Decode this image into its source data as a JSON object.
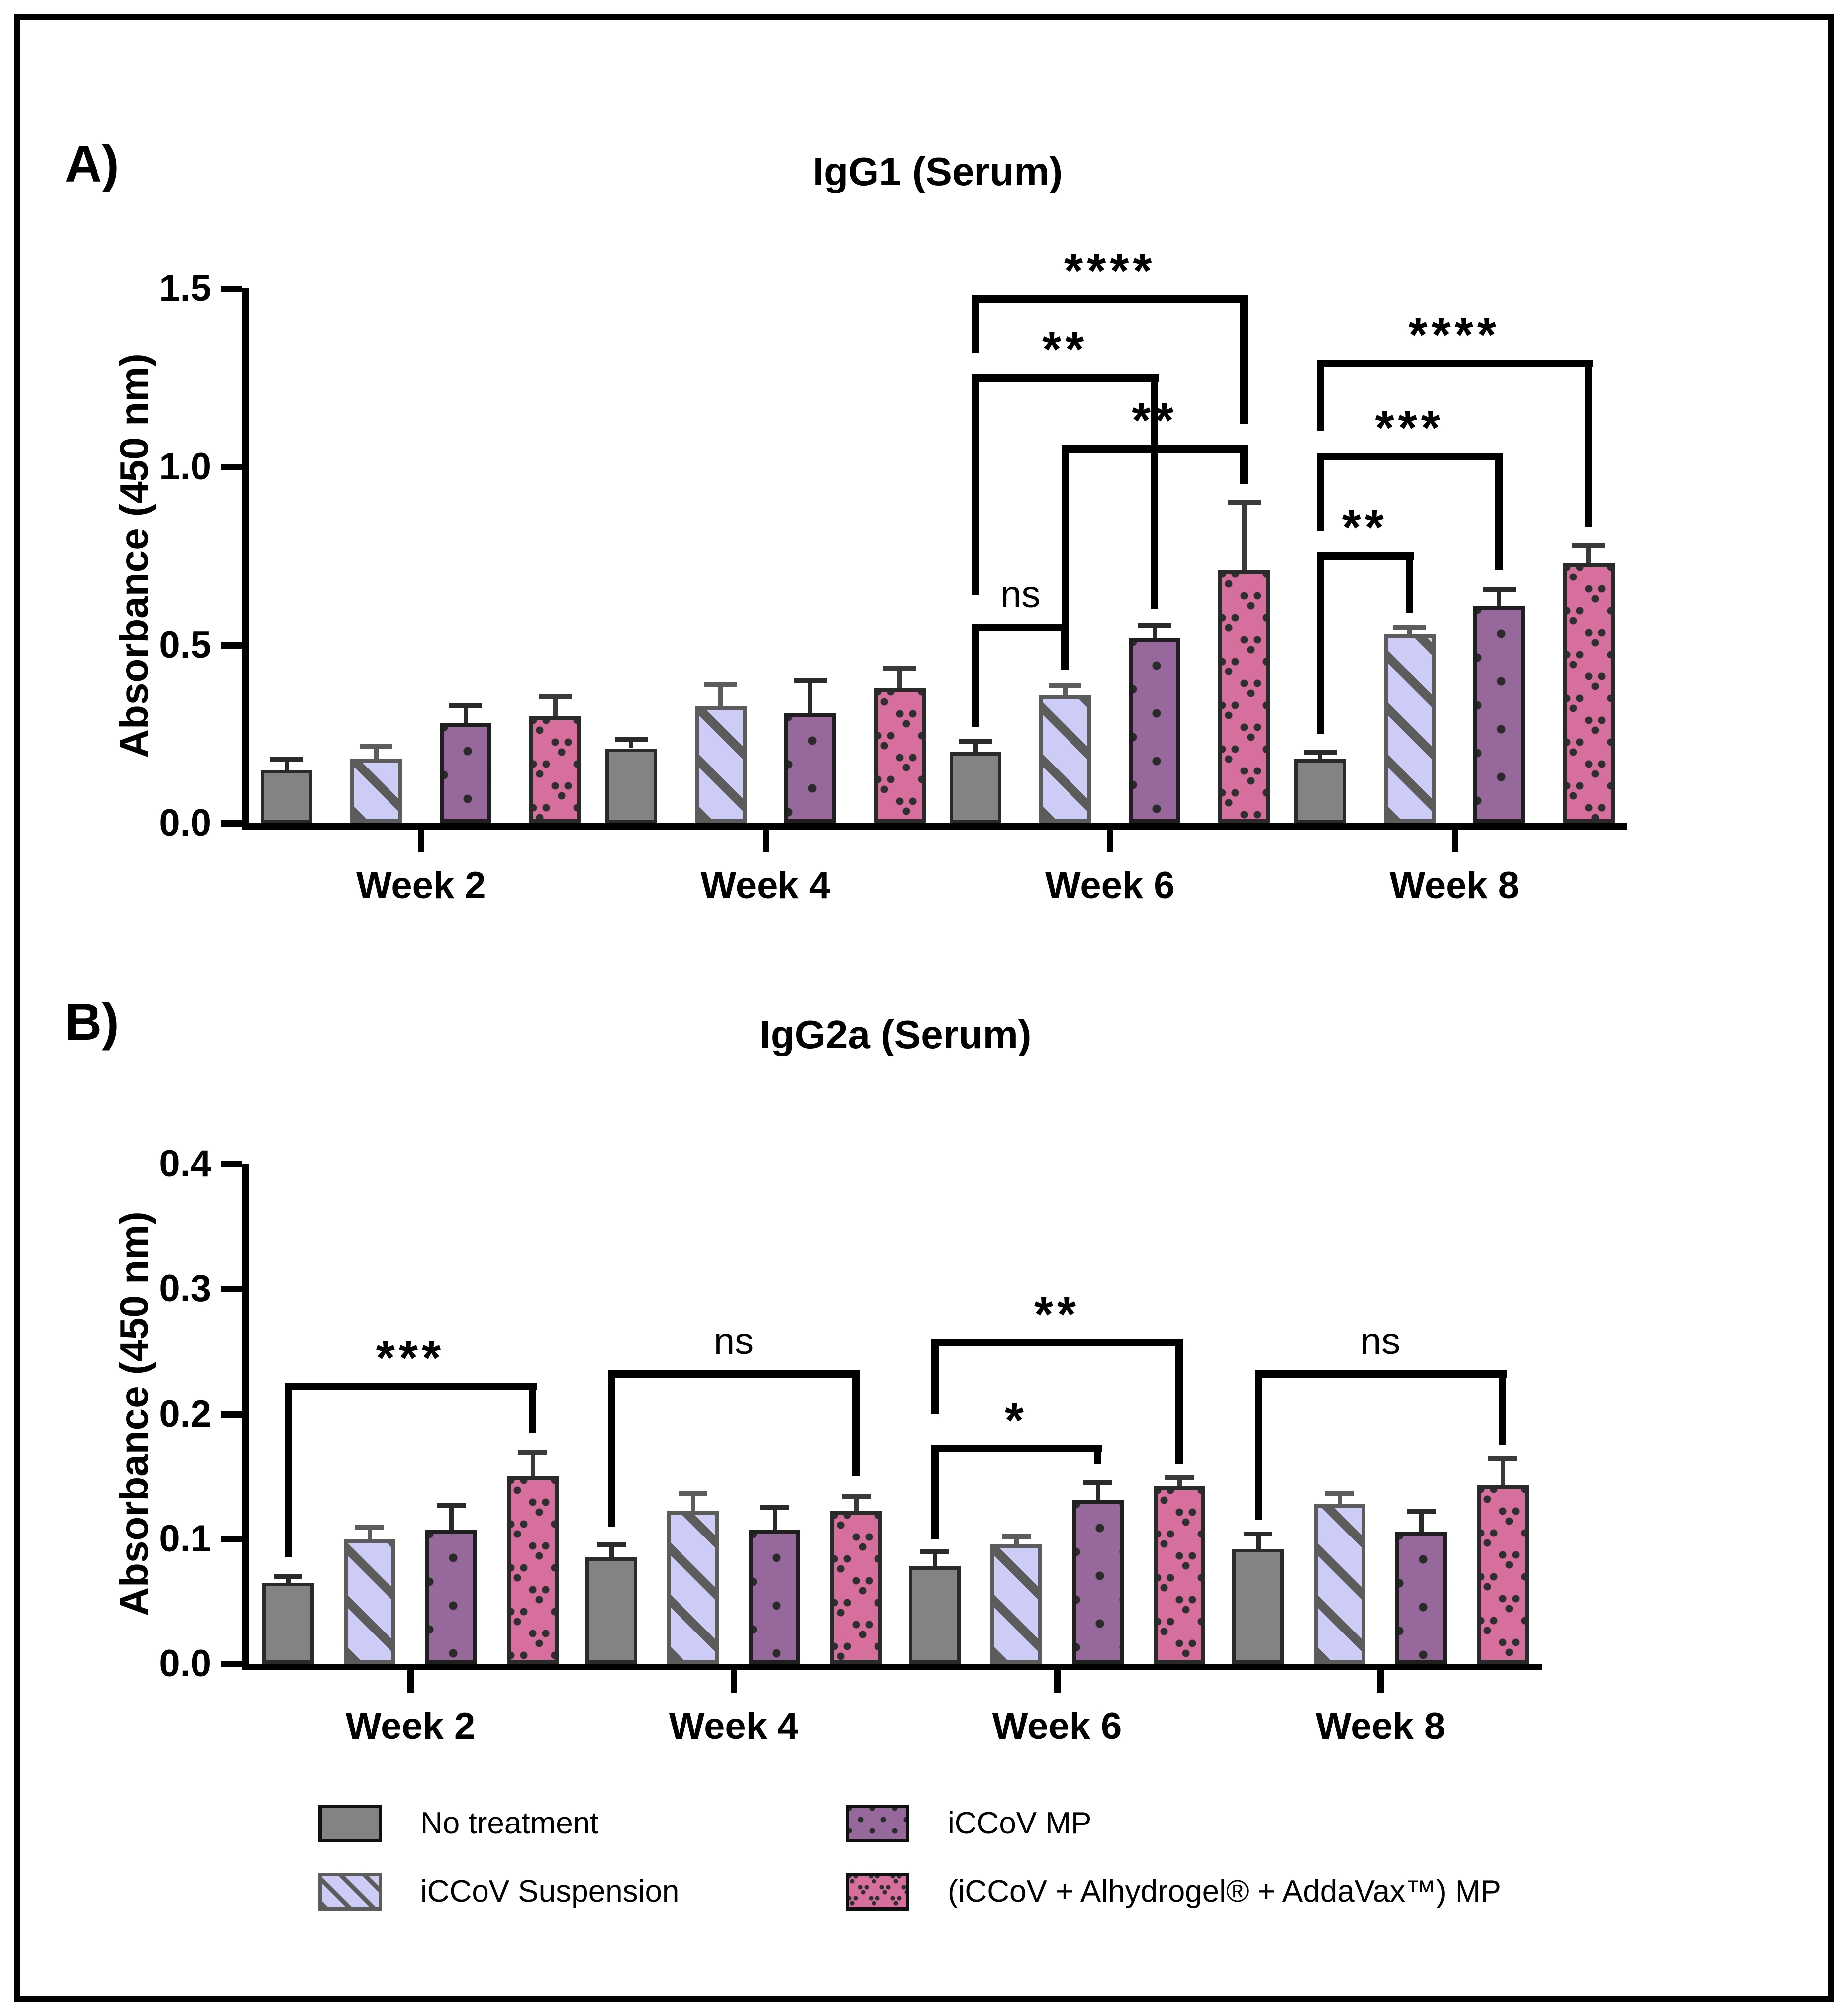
{
  "figure": {
    "panels": [
      {
        "letter": "A)",
        "title": "IgG1 (Serum)",
        "ylabel": "Absorbance (450 nm)"
      },
      {
        "letter": "B)",
        "title": "IgG2a (Serum)",
        "ylabel": "Absorbance (450 nm)"
      }
    ]
  },
  "legend": {
    "items": [
      {
        "label": "No treatment",
        "swatch": "gray-solid"
      },
      {
        "label": "iCCoV Suspension",
        "swatch": "lavender-diagonal-stripes"
      },
      {
        "label": "iCCoV MP",
        "swatch": "purple-dots"
      },
      {
        "label": "(iCCoV + Alhydrogel® + AddaVax™) MP",
        "swatch": "pink-v-pattern"
      }
    ]
  },
  "colors": {
    "no_treatment": "#838383",
    "iccov_suspension": "#cdccf6",
    "iccov_suspension_stripe": "#5c5c5c",
    "iccov_mp": "#97689c",
    "iccov_alhydrogel_addavax_mp": "#d76f9e",
    "pattern_ink": "#2a2a2a",
    "axis": "#000000"
  },
  "chart_data": [
    {
      "type": "bar",
      "title": "IgG1 (Serum)",
      "xlabel": "",
      "ylabel": "Absorbance (450 nm)",
      "ylim": [
        0,
        1.5
      ],
      "yticks": [
        0,
        0.5,
        1.0,
        1.5
      ],
      "ytick_labels": [
        "0.0",
        "0.5",
        "1.0",
        "1.5"
      ],
      "categories": [
        "Week 2",
        "Week 4",
        "Week 6",
        "Week 8"
      ],
      "grid": false,
      "error_bars": "upper SD",
      "series": [
        {
          "name": "No treatment",
          "values": [
            0.15,
            0.21,
            0.2,
            0.18
          ],
          "errors": [
            0.03,
            0.025,
            0.03,
            0.02
          ]
        },
        {
          "name": "iCCoV Suspension",
          "values": [
            0.18,
            0.33,
            0.36,
            0.53
          ],
          "errors": [
            0.035,
            0.06,
            0.025,
            0.02
          ]
        },
        {
          "name": "iCCoV MP",
          "values": [
            0.28,
            0.31,
            0.52,
            0.61
          ],
          "errors": [
            0.05,
            0.09,
            0.035,
            0.045
          ]
        },
        {
          "name": "(iCCoV + Alhydrogel® + AddaVax™) MP",
          "values": [
            0.3,
            0.38,
            0.71,
            0.73
          ],
          "errors": [
            0.055,
            0.055,
            0.19,
            0.05
          ]
        }
      ],
      "significance": [
        {
          "group": 2,
          "from": 0,
          "to": 1,
          "label": "ns",
          "y": 0.56,
          "left_down_to": 0.27,
          "right_down_to": 0.43
        },
        {
          "group": 2,
          "from": 0,
          "to": 2,
          "label": "**",
          "y": 1.26,
          "left_down_to": 0.64,
          "right_down_to": 0.6
        },
        {
          "group": 2,
          "from": 1,
          "to": 3,
          "label": "**",
          "y": 1.06,
          "left_down_to": 0.44,
          "right_down_to": 0.95
        },
        {
          "group": 2,
          "from": 0,
          "to": 3,
          "label": "****",
          "y": 1.48,
          "left_down_to": 1.32,
          "right_down_to": 1.12
        },
        {
          "group": 3,
          "from": 0,
          "to": 1,
          "label": "**",
          "y": 0.76,
          "left_down_to": 0.25,
          "right_down_to": 0.59
        },
        {
          "group": 3,
          "from": 0,
          "to": 2,
          "label": "***",
          "y": 1.04,
          "left_down_to": 0.82,
          "right_down_to": 0.71
        },
        {
          "group": 3,
          "from": 0,
          "to": 3,
          "label": "****",
          "y": 1.3,
          "left_down_to": 1.1,
          "right_down_to": 0.83
        }
      ]
    },
    {
      "type": "bar",
      "title": "IgG2a (Serum)",
      "xlabel": "",
      "ylabel": "Absorbance (450 nm)",
      "ylim": [
        0,
        0.4
      ],
      "yticks": [
        0,
        0.1,
        0.2,
        0.3,
        0.4
      ],
      "ytick_labels": [
        "0.0",
        "0.1",
        "0.2",
        "0.3",
        "0.4"
      ],
      "categories": [
        "Week 2",
        "Week 4",
        "Week 6",
        "Week 8"
      ],
      "grid": false,
      "error_bars": "upper SD",
      "series": [
        {
          "name": "No treatment",
          "values": [
            0.065,
            0.085,
            0.078,
            0.092
          ],
          "errors": [
            0.005,
            0.01,
            0.012,
            0.012
          ]
        },
        {
          "name": "iCCoV Suspension",
          "values": [
            0.1,
            0.122,
            0.096,
            0.128
          ],
          "errors": [
            0.009,
            0.014,
            0.006,
            0.008
          ]
        },
        {
          "name": "iCCoV MP",
          "values": [
            0.107,
            0.107,
            0.131,
            0.106
          ],
          "errors": [
            0.02,
            0.018,
            0.014,
            0.016
          ]
        },
        {
          "name": "(iCCoV + Alhydrogel® + AddaVax™) MP",
          "values": [
            0.15,
            0.122,
            0.142,
            0.143
          ],
          "errors": [
            0.019,
            0.012,
            0.007,
            0.021
          ]
        }
      ],
      "significance": [
        {
          "group": 0,
          "from": 0,
          "to": 3,
          "label": "***",
          "y": 0.225,
          "left_down_to": 0.085,
          "right_down_to": 0.185
        },
        {
          "group": 1,
          "from": 0,
          "to": 3,
          "label": "ns",
          "y": 0.235,
          "left_down_to": 0.11,
          "right_down_to": 0.15
        },
        {
          "group": 2,
          "from": 0,
          "to": 2,
          "label": "*",
          "y": 0.175,
          "left_down_to": 0.1,
          "right_down_to": 0.16
        },
        {
          "group": 2,
          "from": 0,
          "to": 3,
          "label": "**",
          "y": 0.26,
          "left_down_to": 0.2,
          "right_down_to": 0.16
        },
        {
          "group": 3,
          "from": 0,
          "to": 3,
          "label": "ns",
          "y": 0.235,
          "left_down_to": 0.115,
          "right_down_to": 0.175
        }
      ]
    }
  ]
}
